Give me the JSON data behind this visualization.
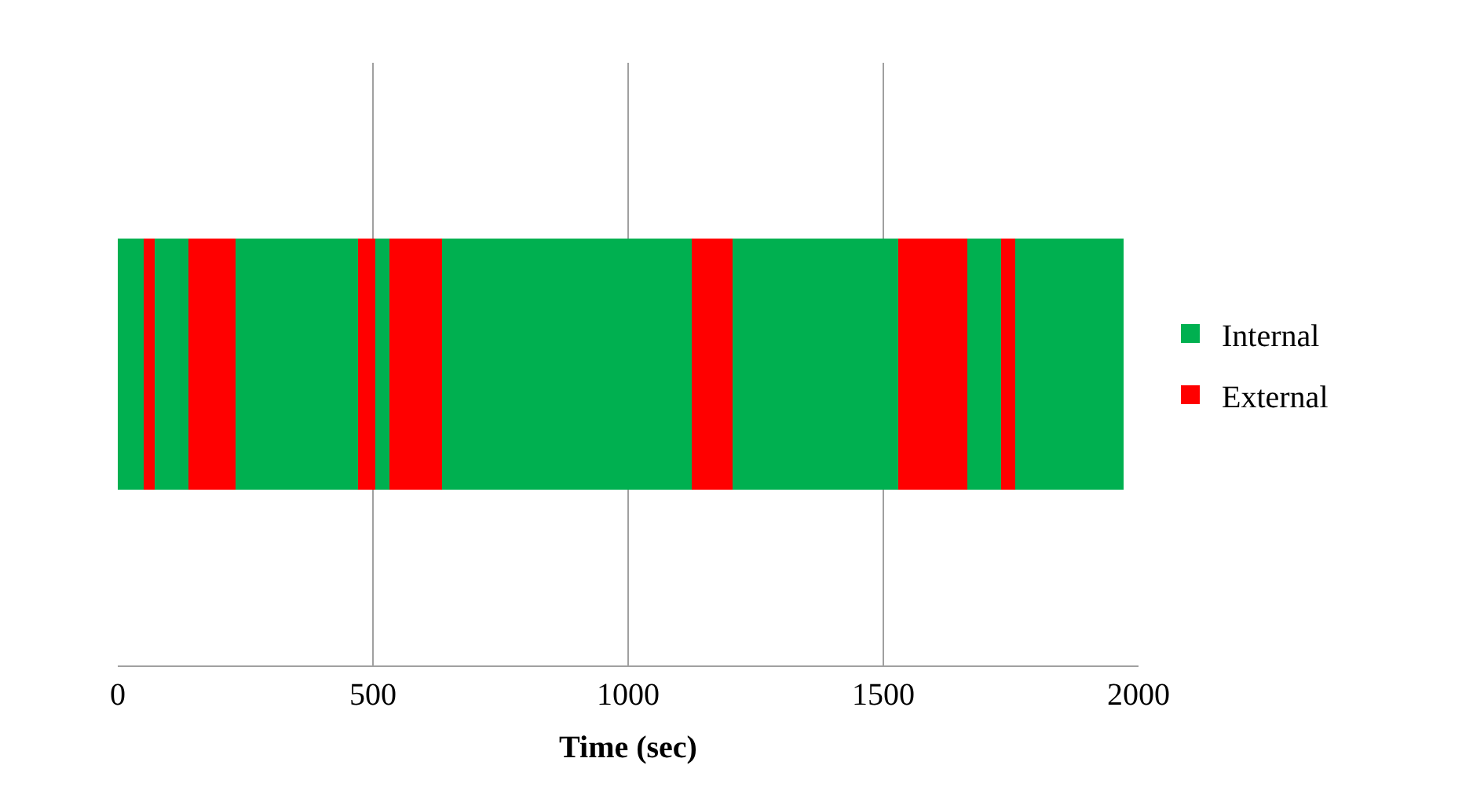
{
  "chart_data": {
    "type": "bar",
    "orientation": "horizontal",
    "stacked": true,
    "xlabel": "Time (sec)",
    "categories": [
      null
    ],
    "series": [
      {
        "name": "Internal",
        "color": "#00b050",
        "values": [
          51
        ]
      },
      {
        "name": "External",
        "color": "#ff0000",
        "values": [
          22
        ]
      },
      {
        "color": "#00b050",
        "values": [
          66
        ]
      },
      {
        "color": "#ff0000",
        "values": [
          91
        ]
      },
      {
        "color": "#00b050",
        "values": [
          241
        ]
      },
      {
        "color": "#ff0000",
        "values": [
          33
        ]
      },
      {
        "color": "#00b050",
        "values": [
          29
        ]
      },
      {
        "color": "#ff0000",
        "values": [
          102
        ]
      },
      {
        "color": "#00b050",
        "values": [
          489
        ]
      },
      {
        "color": "#ff0000",
        "values": [
          80
        ]
      },
      {
        "color": "#00b050",
        "values": [
          325
        ]
      },
      {
        "color": "#ff0000",
        "values": [
          135
        ]
      },
      {
        "color": "#00b050",
        "values": [
          66
        ]
      },
      {
        "color": "#ff0000",
        "values": [
          29
        ]
      },
      {
        "color": "#00b050",
        "values": [
          212
        ]
      }
    ],
    "xlim": [
      0,
      2000
    ],
    "xticks": [
      0,
      500,
      1000,
      1500,
      2000
    ],
    "grid": "x",
    "legend": "right",
    "tick_labels": "x"
  }
}
